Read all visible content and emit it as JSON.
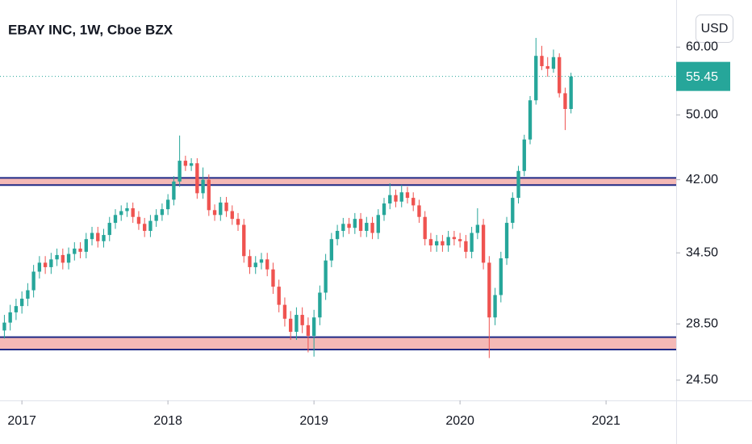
{
  "chart_data": {
    "type": "candlestick",
    "title": "EBAY INC, 1W, Cboe BZX",
    "currency": "USD",
    "log_scale": true,
    "grid": false,
    "up_color": "#26a69a",
    "down_color": "#ef5350",
    "band_fill": "#f4b9b6",
    "band_line_color": "#1f2a86",
    "xlim": [
      2016.85,
      2021.48
    ],
    "xticks": [
      2017,
      2018,
      2019,
      2020,
      2021
    ],
    "ylim": [
      23.2,
      68.1
    ],
    "yticks": [
      {
        "value": 24.5,
        "label": "24.50"
      },
      {
        "value": 28.5,
        "label": "28.50"
      },
      {
        "value": 34.5,
        "label": "34.50"
      },
      {
        "value": 42,
        "label": "42.00"
      },
      {
        "value": 50,
        "label": "50.00"
      },
      {
        "value": 60,
        "label": "60.00"
      }
    ],
    "bands": [
      {
        "low": 41.4,
        "high": 42.2
      },
      {
        "low": 26.6,
        "high": 27.5
      }
    ],
    "last_price": 55.45,
    "x": [
      2016.88,
      2016.92,
      2016.96,
      2017.0,
      2017.04,
      2017.08,
      2017.12,
      2017.16,
      2017.2,
      2017.24,
      2017.28,
      2017.32,
      2017.36,
      2017.4,
      2017.44,
      2017.48,
      2017.52,
      2017.56,
      2017.6,
      2017.64,
      2017.68,
      2017.72,
      2017.76,
      2017.8,
      2017.84,
      2017.88,
      2017.92,
      2017.96,
      2018.0,
      2018.04,
      2018.08,
      2018.12,
      2018.16,
      2018.2,
      2018.24,
      2018.28,
      2018.32,
      2018.36,
      2018.4,
      2018.44,
      2018.48,
      2018.52,
      2018.56,
      2018.6,
      2018.64,
      2018.68,
      2018.72,
      2018.76,
      2018.8,
      2018.84,
      2018.88,
      2018.92,
      2018.96,
      2019.0,
      2019.04,
      2019.08,
      2019.12,
      2019.16,
      2019.2,
      2019.24,
      2019.28,
      2019.32,
      2019.36,
      2019.4,
      2019.44,
      2019.48,
      2019.52,
      2019.56,
      2019.6,
      2019.64,
      2019.68,
      2019.72,
      2019.76,
      2019.8,
      2019.84,
      2019.88,
      2019.92,
      2019.96,
      2020.0,
      2020.04,
      2020.08,
      2020.12,
      2020.16,
      2020.2,
      2020.24,
      2020.28,
      2020.32,
      2020.36,
      2020.4,
      2020.44,
      2020.48,
      2020.52,
      2020.56,
      2020.6,
      2020.64,
      2020.68,
      2020.72,
      2020.76
    ],
    "open": [
      28.0,
      28.6,
      29.4,
      29.9,
      30.5,
      31.2,
      32.8,
      33.6,
      33.2,
      33.9,
      34.3,
      33.6,
      34.4,
      34.9,
      34.6,
      35.8,
      36.4,
      35.6,
      36.2,
      37.4,
      38.2,
      38.6,
      38.9,
      38.0,
      37.3,
      36.6,
      37.6,
      38.2,
      38.8,
      39.8,
      41.8,
      44.2,
      43.6,
      43.9,
      40.5,
      42.0,
      38.7,
      38.2,
      39.5,
      38.6,
      37.8,
      37.2,
      34.2,
      33.2,
      33.6,
      33.9,
      33.0,
      31.5,
      30.0,
      28.9,
      27.9,
      29.2,
      28.4,
      27.6,
      29.0,
      31.0,
      33.8,
      35.8,
      36.6,
      37.3,
      36.9,
      37.8,
      36.6,
      37.4,
      36.4,
      38.2,
      39.4,
      40.3,
      39.6,
      40.6,
      40.0,
      39.2,
      38.0,
      35.8,
      35.2,
      35.6,
      35.2,
      36.0,
      35.8,
      35.6,
      34.6,
      36.4,
      37.2,
      33.6,
      29.0,
      30.8,
      34.0,
      37.4,
      40.0,
      43.0,
      46.8,
      52.0,
      58.6,
      57.0,
      56.6,
      58.4,
      53.0,
      50.8
    ],
    "high": [
      29.2,
      30.0,
      30.5,
      31.1,
      31.8,
      33.4,
      34.2,
      34.2,
      34.5,
      34.9,
      34.9,
      35.0,
      35.5,
      35.5,
      36.4,
      37.0,
      37.0,
      36.8,
      38.0,
      38.8,
      39.2,
      39.5,
      39.5,
      38.6,
      37.9,
      38.2,
      38.8,
      39.4,
      40.4,
      42.4,
      47.3,
      44.8,
      44.5,
      44.5,
      43.4,
      42.6,
      39.3,
      40.1,
      40.1,
      39.2,
      38.4,
      37.8,
      34.8,
      34.2,
      34.5,
      34.5,
      33.6,
      32.1,
      30.6,
      29.5,
      29.8,
      29.8,
      29.0,
      29.6,
      31.6,
      34.4,
      36.4,
      37.2,
      37.9,
      37.9,
      38.4,
      38.4,
      38.0,
      38.0,
      38.8,
      40.0,
      41.6,
      40.9,
      41.4,
      41.2,
      40.6,
      39.8,
      38.6,
      36.4,
      36.2,
      36.2,
      36.6,
      36.6,
      36.4,
      36.2,
      37.0,
      38.9,
      37.8,
      34.2,
      31.4,
      34.6,
      38.0,
      40.6,
      43.6,
      47.4,
      52.6,
      61.5,
      60.2,
      58.4,
      59.6,
      59.0,
      53.8,
      56.0
    ],
    "low": [
      27.4,
      28.0,
      28.8,
      29.3,
      29.9,
      30.6,
      32.2,
      32.6,
      32.6,
      33.3,
      33.0,
      33.0,
      33.8,
      34.0,
      34.0,
      35.2,
      35.0,
      35.0,
      35.6,
      36.8,
      37.6,
      38.0,
      37.4,
      36.7,
      36.0,
      36.0,
      37.0,
      37.6,
      38.2,
      39.2,
      41.2,
      43.0,
      43.0,
      39.9,
      39.9,
      38.1,
      37.6,
      37.6,
      38.0,
      37.2,
      36.6,
      33.6,
      32.6,
      32.6,
      33.0,
      32.4,
      30.9,
      29.4,
      28.3,
      27.3,
      27.3,
      27.8,
      26.4,
      26.1,
      28.4,
      30.4,
      33.2,
      35.2,
      36.0,
      36.3,
      36.3,
      36.0,
      36.0,
      35.8,
      35.8,
      37.6,
      38.8,
      39.0,
      39.0,
      39.4,
      38.6,
      37.4,
      35.2,
      34.6,
      34.6,
      34.6,
      34.6,
      35.2,
      35.0,
      34.0,
      34.0,
      35.8,
      33.0,
      26.0,
      28.4,
      30.2,
      33.4,
      36.8,
      39.4,
      42.4,
      46.2,
      51.4,
      56.4,
      55.4,
      56.0,
      52.4,
      48.0,
      50.2
    ],
    "close": [
      28.6,
      29.4,
      29.9,
      30.5,
      31.2,
      32.8,
      33.6,
      33.2,
      33.9,
      34.3,
      33.6,
      34.4,
      34.9,
      34.6,
      35.8,
      36.4,
      35.6,
      36.2,
      37.4,
      38.2,
      38.6,
      38.9,
      38.0,
      37.3,
      36.6,
      37.6,
      38.2,
      38.8,
      39.8,
      41.8,
      44.2,
      43.6,
      43.9,
      40.5,
      42.0,
      38.7,
      38.2,
      39.5,
      38.6,
      37.8,
      37.2,
      34.2,
      33.2,
      33.6,
      33.9,
      33.0,
      31.5,
      30.0,
      28.9,
      27.9,
      29.2,
      28.4,
      27.6,
      29.0,
      31.0,
      33.8,
      35.8,
      36.6,
      37.3,
      36.9,
      37.8,
      36.6,
      37.4,
      36.4,
      38.2,
      39.4,
      40.3,
      39.6,
      40.6,
      40.0,
      39.2,
      38.0,
      35.8,
      35.2,
      35.6,
      35.2,
      36.0,
      35.8,
      35.6,
      34.6,
      36.4,
      37.2,
      33.6,
      29.0,
      30.8,
      34.0,
      37.4,
      40.0,
      43.0,
      46.8,
      52.0,
      58.6,
      57.0,
      56.6,
      58.4,
      53.0,
      50.8,
      55.45
    ]
  }
}
